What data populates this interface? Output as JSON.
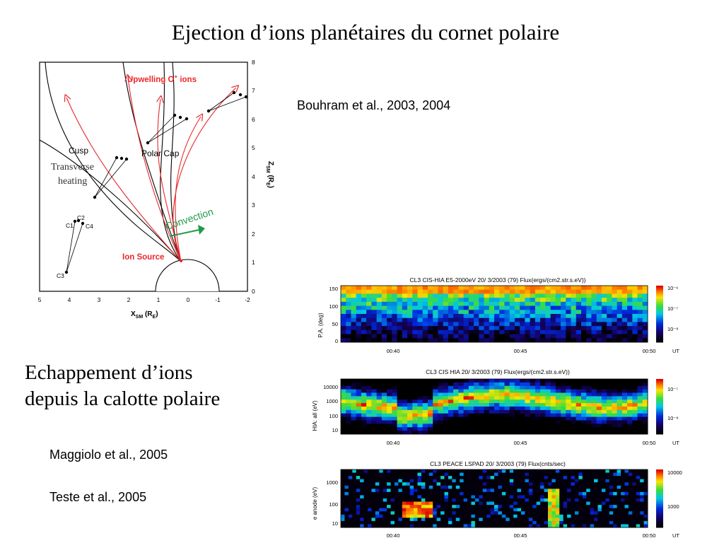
{
  "slide": {
    "title": "Ejection d’ions planétaires du cornet polaire",
    "refs": {
      "bouhram": "Bouhram et al., 2003, 2004",
      "maggiolo": "Maggiolo et al., 2005",
      "teste": "Teste et al., 2005"
    },
    "caption_lines": [
      "Echappement d’ions",
      "depuis la calotte polaire"
    ]
  },
  "diagram": {
    "upwelling_prefix": "Upwelling O",
    "upwelling_sup": "+",
    "upwelling_suffix": " ions",
    "cusp": "Cusp",
    "transverse": "Transverse",
    "heating": "heating",
    "polar_cap": "Polar Cap",
    "convection": "Convection",
    "ion_source": "Ion Source",
    "c1": "C1",
    "c2": "C2",
    "c3": "C3",
    "c4": "C4",
    "x_ticks": [
      "5",
      "4",
      "3",
      "2",
      "1",
      "0",
      "-1",
      "-2"
    ],
    "z_ticks": [
      "0",
      "1",
      "2",
      "3",
      "4",
      "5",
      "6",
      "7",
      "8"
    ],
    "x_label_main": "X",
    "x_label_sub": "SM",
    "x_label_unit": " (R",
    "x_label_unit_sub": "E",
    "x_label_end": ")",
    "z_label": "Z",
    "z_label_sub": "SM",
    "z_label_unit": " (R",
    "z_label_unit_sub": "E",
    "z_label_end": ")",
    "colors": {
      "red": "#e8282b",
      "green": "#1f9a48",
      "black": "#000000"
    }
  },
  "spectrograms": [
    {
      "title": "CL3 CIS-HIA E5-2000eV 20/ 3/2003 (79) Flux(ergs/(cm2.str.s.eV))",
      "ylabel": "P.A. (deg)",
      "yticks": [
        "150",
        "100",
        "50",
        "0"
      ],
      "cbar": [
        "10⁻⁶",
        "10⁻⁷",
        "10⁻⁸"
      ],
      "times": [
        "00:40",
        "00:45",
        "00:50"
      ],
      "ut": "UT"
    },
    {
      "title": "CL3 CIS HIA 20/ 3/2003 (79) Flux(ergs/(cm2.str.s.eV))",
      "ylabel": "HIA: all (eV)",
      "yticks": [
        "10000",
        "1000",
        "100",
        "10"
      ],
      "cbar": [
        "10⁻⁷",
        "10⁻⁸"
      ],
      "times": [
        "00:40",
        "00:45",
        "00:50"
      ],
      "ut": "UT"
    },
    {
      "title": "CL3 PEACE LSPAD 20/ 3/2003 (79) Flux(cnts/sec)",
      "ylabel": "e anode (eV)",
      "yticks": [
        "1000",
        "100",
        "10"
      ],
      "cbar": [
        "10000",
        "1000"
      ],
      "times": [
        "00:40",
        "00:45",
        "00:50"
      ],
      "ut": "UT"
    }
  ]
}
